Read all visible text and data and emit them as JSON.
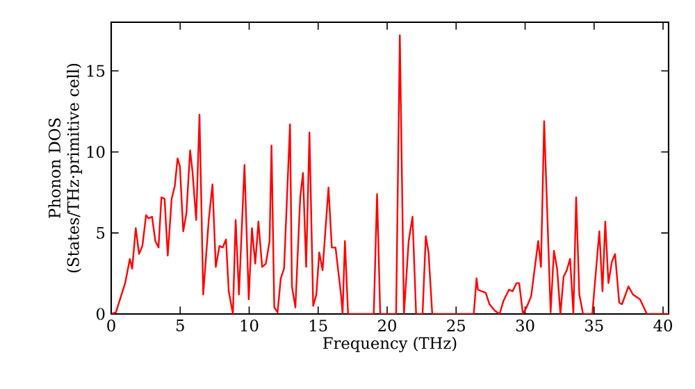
{
  "chart_data": {
    "type": "line",
    "xlabel": "Frequency (THz)",
    "ylabel": "Phonon DOS (States/THz·primitive cell)",
    "xlim": [
      0,
      40.4
    ],
    "ylim": [
      0,
      18
    ],
    "xticks": [
      0,
      5,
      10,
      15,
      20,
      25,
      30,
      35,
      40
    ],
    "yticks": [
      0,
      5,
      10,
      15
    ],
    "grid": false,
    "marker": "none",
    "line_style": "solid",
    "series": [
      {
        "color": "#ff0000",
        "x": [
          0,
          0.34,
          1.01,
          1.35,
          1.52,
          1.78,
          2.02,
          2.26,
          2.53,
          2.7,
          2.96,
          3.2,
          3.43,
          3.64,
          3.87,
          4.1,
          4.38,
          4.61,
          4.81,
          4.98,
          5.22,
          5.45,
          5.72,
          5.89,
          6.16,
          6.4,
          6.67,
          7.07,
          7.34,
          7.58,
          7.85,
          8.08,
          8.32,
          8.52,
          8.82,
          9.02,
          9.26,
          9.66,
          9.97,
          10.2,
          10.44,
          10.67,
          10.94,
          11.21,
          11.48,
          11.62,
          11.82,
          12.06,
          12.29,
          12.53,
          12.96,
          13.1,
          13.35,
          13.7,
          13.9,
          14.13,
          14.37,
          14.64,
          14.87,
          15.08,
          15.32,
          15.75,
          15.99,
          16.26,
          16.67,
          16.77,
          16.94,
          17.17,
          19.03,
          19.27,
          19.5,
          20.65,
          20.92,
          21.22,
          21.56,
          21.84,
          22.1,
          22.57,
          22.8,
          23.0,
          23.27,
          26.28,
          26.48,
          26.58,
          27.15,
          27.42,
          27.8,
          28.15,
          28.43,
          28.83,
          29.1,
          29.37,
          29.57,
          29.84,
          30.1,
          30.44,
          30.95,
          31.15,
          31.38,
          31.85,
          32.09,
          32.32,
          32.56,
          32.79,
          33.02,
          33.26,
          33.5,
          33.7,
          33.93,
          34.2,
          34.87,
          35.38,
          35.61,
          35.81,
          36.04,
          36.28,
          36.52,
          36.82,
          37.02,
          37.49,
          37.82,
          38.33,
          38.83,
          40.4
        ],
        "values": [
          0,
          0.1,
          1.9,
          3.4,
          2.8,
          5.3,
          3.7,
          4.2,
          6.1,
          5.9,
          6.0,
          4.5,
          4.1,
          7.2,
          7.1,
          3.6,
          7.1,
          7.9,
          9.6,
          9.1,
          5.1,
          6.2,
          10.1,
          8.8,
          5.8,
          12.3,
          1.2,
          5.8,
          8.0,
          2.9,
          4.2,
          4.1,
          4.6,
          1.4,
          0,
          5.8,
          1.2,
          9.2,
          0.9,
          5.3,
          3.1,
          5.7,
          2.9,
          3.1,
          4.5,
          10.4,
          0.4,
          0.1,
          2.2,
          2.8,
          11.7,
          1.7,
          0.4,
          7.2,
          8.7,
          2.9,
          11.2,
          0.5,
          1.2,
          3.8,
          2.7,
          7.8,
          4.1,
          4.1,
          1.1,
          0,
          4.5,
          0,
          0,
          7.4,
          0,
          0,
          17.2,
          0,
          4.5,
          6.0,
          0,
          0,
          4.8,
          3.8,
          0,
          0,
          2.2,
          1.5,
          1.3,
          0.6,
          0.2,
          0,
          0.8,
          1.5,
          1.4,
          1.9,
          1.9,
          0,
          0.4,
          1.1,
          4.5,
          2.9,
          11.9,
          0.1,
          3.9,
          2.8,
          0,
          2.3,
          2.7,
          3.4,
          0,
          7.2,
          1.2,
          0,
          0,
          5.1,
          1.4,
          5.7,
          1.9,
          3.2,
          3.7,
          0.7,
          0.6,
          1.7,
          1.2,
          0.9,
          0,
          0
        ]
      }
    ]
  }
}
